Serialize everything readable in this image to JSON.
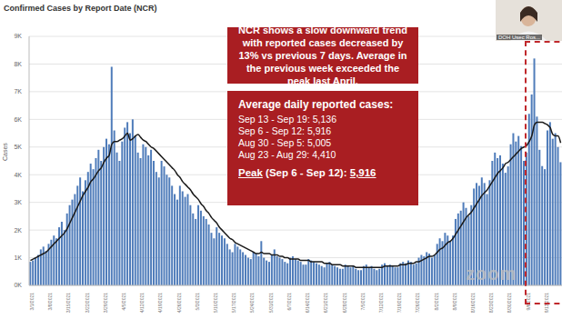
{
  "chart_data": {
    "type": "bar",
    "title": "Confirmed Cases by Report Date (NCR)",
    "y_label": "Cases",
    "categories": [
      "3/1/2021",
      null,
      null,
      null,
      null,
      null,
      null,
      "3/8/2021",
      null,
      null,
      null,
      null,
      null,
      null,
      "3/15/2021",
      null,
      null,
      null,
      null,
      null,
      null,
      "3/22/2021",
      null,
      null,
      null,
      null,
      null,
      null,
      "3/29/2021",
      null,
      null,
      null,
      null,
      null,
      null,
      "4/5/2021",
      null,
      null,
      null,
      null,
      null,
      null,
      "4/12/2021",
      null,
      null,
      null,
      null,
      null,
      null,
      "4/19/2021",
      null,
      null,
      null,
      null,
      null,
      null,
      "4/26/2021",
      null,
      null,
      null,
      null,
      null,
      null,
      "5/3/2021",
      null,
      null,
      null,
      null,
      null,
      null,
      "5/10/2021",
      null,
      null,
      null,
      null,
      null,
      null,
      "5/17/2021",
      null,
      null,
      null,
      null,
      null,
      null,
      "5/24/2021",
      null,
      null,
      null,
      null,
      null,
      null,
      "5/31/2021",
      null,
      null,
      null,
      null,
      null,
      null,
      "6/7/2021",
      null,
      null,
      null,
      null,
      null,
      null,
      "6/14/2021",
      null,
      null,
      null,
      null,
      null,
      null,
      "6/21/2021",
      null,
      null,
      null,
      null,
      null,
      null,
      "6/28/2021",
      null,
      null,
      null,
      null,
      null,
      null,
      "7/5/2021",
      null,
      null,
      null,
      null,
      null,
      null,
      "7/12/2021",
      null,
      null,
      null,
      null,
      null,
      null,
      "7/19/2021",
      null,
      null,
      null,
      null,
      null,
      null,
      "7/26/2021",
      null,
      null,
      null,
      null,
      null,
      null,
      "8/2/2021",
      null,
      null,
      null,
      null,
      null,
      null,
      "8/9/2021",
      null,
      null,
      null,
      null,
      null,
      null,
      "8/16/2021",
      null,
      null,
      null,
      null,
      null,
      null,
      "8/23/2021",
      null,
      null,
      null,
      null,
      null,
      null,
      "8/30/2021",
      null,
      null,
      null,
      null,
      null,
      null,
      "9/6/2021",
      null,
      null,
      null,
      null,
      null,
      null,
      "9/13/2021",
      null,
      null,
      null,
      null,
      null,
      null
    ],
    "series": [
      {
        "type": "bar",
        "color": "#4f7cba",
        "values": [
          850,
          900,
          1000,
          1100,
          1300,
          1400,
          1250,
          1500,
          1650,
          1800,
          1700,
          2100,
          2300,
          2000,
          2600,
          2900,
          3100,
          3300,
          3600,
          3900,
          3400,
          3800,
          4100,
          4400,
          4200,
          4600,
          4900,
          4500,
          5000,
          5300,
          5100,
          7900,
          5600,
          4800,
          4500,
          5200,
          5700,
          5900,
          5500,
          6000,
          5400,
          4800,
          4600,
          5100,
          5000,
          4700,
          4900,
          4500,
          4100,
          3900,
          4500,
          4300,
          4000,
          3900,
          3600,
          3300,
          3100,
          3600,
          3400,
          3200,
          3300,
          2900,
          2600,
          2400,
          2900,
          2700,
          2500,
          2400,
          2200,
          1900,
          1700,
          2100,
          1900,
          1800,
          1700,
          1500,
          1300,
          1200,
          1500,
          1400,
          1300,
          1200,
          1100,
          1000,
          950,
          1200,
          1150,
          1050,
          1600,
          1000,
          900,
          850,
          1100,
          1300,
          1050,
          1000,
          950,
          850,
          800,
          1000,
          1050,
          950,
          900,
          850,
          750,
          750,
          950,
          900,
          850,
          800,
          750,
          700,
          650,
          800,
          850,
          750,
          700,
          650,
          600,
          600,
          750,
          700,
          650,
          700,
          600,
          550,
          550,
          700,
          750,
          650,
          700,
          600,
          550,
          600,
          750,
          800,
          700,
          750,
          700,
          650,
          650,
          800,
          850,
          800,
          900,
          850,
          750,
          800,
          1000,
          1100,
          1050,
          1200,
          1150,
          1000,
          1100,
          1500,
          1700,
          1600,
          1900,
          1800,
          1600,
          1800,
          2400,
          2600,
          2700,
          3000,
          2800,
          2500,
          2900,
          3500,
          3700,
          3600,
          3900,
          3700,
          3300,
          3800,
          4500,
          4800,
          4600,
          4700,
          4400,
          4070,
          4300,
          5100,
          5500,
          5200,
          5400,
          5035,
          4500,
          4800,
          6200,
          6900,
          8200,
          6100,
          4900,
          4312,
          4200,
          5600,
          5900,
          5300,
          5500,
          5000,
          4452
        ]
      },
      {
        "type": "line",
        "color": "#1a1a1a",
        "values": [
          900,
          950,
          1000,
          1050,
          1100,
          1150,
          1200,
          1300,
          1400,
          1500,
          1600,
          1700,
          1800,
          1900,
          2050,
          2250,
          2450,
          2650,
          2850,
          3050,
          3250,
          3400,
          3550,
          3750,
          3850,
          4000,
          4150,
          4250,
          4450,
          4600,
          4700,
          5100,
          5200,
          5200,
          5250,
          5300,
          5400,
          5500,
          5250,
          5300,
          5400,
          5450,
          5350,
          5250,
          5200,
          5100,
          5000,
          4950,
          4850,
          4750,
          4650,
          4550,
          4450,
          4350,
          4250,
          4150,
          4000,
          3900,
          3750,
          3650,
          3550,
          3450,
          3300,
          3200,
          3100,
          2950,
          2850,
          2700,
          2600,
          2450,
          2350,
          2250,
          2100,
          2000,
          1900,
          1800,
          1700,
          1650,
          1550,
          1500,
          1450,
          1400,
          1350,
          1300,
          1250,
          1200,
          1150,
          1150,
          1200,
          1150,
          1150,
          1150,
          1100,
          1100,
          1100,
          1050,
          1050,
          1000,
          1000,
          950,
          950,
          950,
          950,
          900,
          900,
          900,
          900,
          850,
          850,
          850,
          850,
          850,
          800,
          800,
          800,
          750,
          750,
          750,
          750,
          700,
          700,
          700,
          700,
          700,
          650,
          650,
          650,
          650,
          650,
          650,
          650,
          650,
          650,
          650,
          650,
          700,
          700,
          700,
          700,
          700,
          700,
          750,
          750,
          750,
          800,
          800,
          800,
          850,
          850,
          900,
          950,
          1000,
          1050,
          1050,
          1100,
          1200,
          1300,
          1350,
          1450,
          1550,
          1600,
          1700,
          1850,
          2000,
          2150,
          2300,
          2450,
          2550,
          2650,
          2800,
          2950,
          3100,
          3250,
          3350,
          3450,
          3600,
          3750,
          3900,
          4050,
          4150,
          4250,
          4400,
          4450,
          4550,
          4650,
          4750,
          4850,
          4950,
          5000,
          5050,
          5200,
          5400,
          5800,
          5900,
          5900,
          5900,
          5850,
          5800,
          5700,
          5450,
          5400,
          5400,
          5150
        ]
      }
    ],
    "ylim": [
      0,
      9000
    ],
    "yticks": [
      {
        "value": 0,
        "label": "0K"
      },
      {
        "value": 1000,
        "label": "1K"
      },
      {
        "value": 2000,
        "label": "2K"
      },
      {
        "value": 3000,
        "label": "3K"
      },
      {
        "value": 4000,
        "label": "4K"
      },
      {
        "value": 5000,
        "label": "5K"
      },
      {
        "value": 6000,
        "label": "6K"
      },
      {
        "value": 7000,
        "label": "7K"
      },
      {
        "value": 8000,
        "label": "8K"
      },
      {
        "value": 9000,
        "label": "9K"
      }
    ],
    "grid": true,
    "annotations": [
      {
        "color": "#a91e22",
        "lines": [
          "NCR shows a slow downward trend with reported cases decreased by 13% vs previous 7 days. Average in the previous week exceeded the peak last April."
        ]
      },
      {
        "color": "#a91e22",
        "heading": "Average daily reported cases:",
        "lines": [
          "Sep 13 - Sep 19: 5,136",
          "Sep 6 - Sep 12: 5,916",
          "Aug 30 - Sep 5: 5,005",
          "Aug 23 - Aug 29: 4,410"
        ],
        "peak_label": "Peak",
        "peak_period": "(Sep 6 - Sep 12):",
        "peak_value": "5,916"
      }
    ]
  },
  "screen": {
    "speaker_label": "DOH Usec Ros...",
    "watermark": "zoom"
  }
}
